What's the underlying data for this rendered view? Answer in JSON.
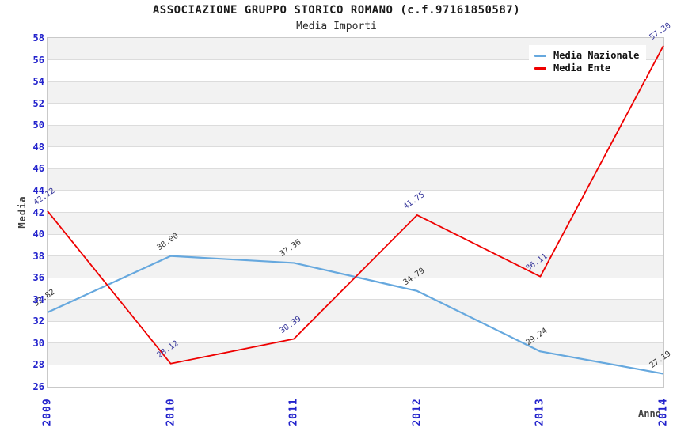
{
  "header": {
    "title": "ASSOCIAZIONE GRUPPO STORICO ROMANO (c.f.97161850587)",
    "subtitle": "Media Importi"
  },
  "axes": {
    "x_title": "Anno",
    "y_title": "Media"
  },
  "legend": {
    "items": [
      {
        "label": "Media Nazionale",
        "color": "#66A8DE"
      },
      {
        "label": "Media Ente",
        "color": "#EE0000"
      }
    ]
  },
  "colors": {
    "tick_label": "#2222CC",
    "axis_title": "#444444",
    "band_gray": "#F2F2F2",
    "band_white": "#FFFFFF",
    "grid_line": "#DCDCDC",
    "plot_border": "#C9C9C9",
    "legend_bg": "#FFFFFF"
  },
  "chart_data": {
    "type": "line",
    "title": "ASSOCIAZIONE GRUPPO STORICO ROMANO (c.f.97161850587)",
    "subtitle": "Media Importi",
    "xlabel": "Anno",
    "ylabel": "Media",
    "x": [
      "2009",
      "2010",
      "2011",
      "2012",
      "2013",
      "2014"
    ],
    "ylim": [
      26,
      58
    ],
    "y_tick_step": 2,
    "grid": "horizontal-bands",
    "legend_position": "top-right",
    "series": [
      {
        "name": "Media Nazionale",
        "color": "#66A8DE",
        "label_color": "#333333",
        "values": [
          32.82,
          38.0,
          37.36,
          34.79,
          29.24,
          27.19
        ]
      },
      {
        "name": "Media Ente",
        "color": "#EE0000",
        "label_color": "#333399",
        "values": [
          42.12,
          28.12,
          30.39,
          41.75,
          36.11,
          57.3
        ]
      }
    ]
  }
}
